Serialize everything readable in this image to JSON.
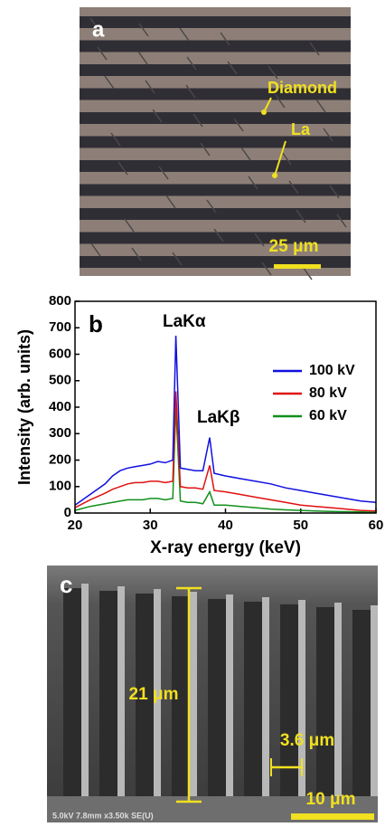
{
  "panel_a": {
    "label": "a",
    "annotations": [
      "Diamond",
      "La"
    ],
    "scale_bar": "25 μm"
  },
  "chart_data": {
    "type": "line",
    "label": "b",
    "xlabel": "X-ray energy (keV)",
    "ylabel": "Intensity (arb. units)",
    "annotations": [
      "LaKα",
      "LaKβ"
    ],
    "x": [
      20,
      22,
      24,
      25,
      26,
      27,
      28,
      29,
      30,
      31,
      32,
      33,
      33.4,
      34,
      35,
      36,
      37,
      37.9,
      38.5,
      40,
      42,
      44,
      46,
      48,
      50,
      52,
      54,
      56,
      58,
      60
    ],
    "series": [
      {
        "name": "100 kV",
        "color": "#1010e0",
        "values": [
          30,
          70,
          110,
          140,
          160,
          170,
          175,
          180,
          185,
          195,
          190,
          200,
          670,
          170,
          165,
          160,
          160,
          285,
          150,
          140,
          130,
          120,
          110,
          95,
          85,
          75,
          65,
          55,
          45,
          40
        ]
      },
      {
        "name": "80 kV",
        "color": "#e01010",
        "values": [
          20,
          50,
          75,
          90,
          100,
          110,
          115,
          115,
          120,
          120,
          115,
          120,
          460,
          100,
          95,
          95,
          90,
          180,
          85,
          80,
          70,
          60,
          50,
          40,
          30,
          25,
          20,
          15,
          10,
          8
        ]
      },
      {
        "name": "60 kV",
        "color": "#10901a",
        "values": [
          10,
          25,
          35,
          40,
          45,
          50,
          50,
          50,
          55,
          55,
          50,
          55,
          400,
          45,
          40,
          40,
          35,
          80,
          30,
          30,
          25,
          20,
          15,
          12,
          10,
          8,
          6,
          5,
          4,
          3
        ]
      }
    ],
    "xlim": [
      20,
      60
    ],
    "xticks": [
      20,
      30,
      40,
      50,
      60
    ],
    "ylim": [
      0,
      800
    ],
    "yticks": [
      0,
      100,
      200,
      300,
      400,
      500,
      600,
      700,
      800
    ],
    "legend": "upper right"
  },
  "panel_c": {
    "label": "c",
    "dimensions": [
      "21 μm",
      "3.6 μm"
    ],
    "scale_bar": "10 μm",
    "info": "5.0kV 7.8mm x3.50k SE(U)"
  }
}
